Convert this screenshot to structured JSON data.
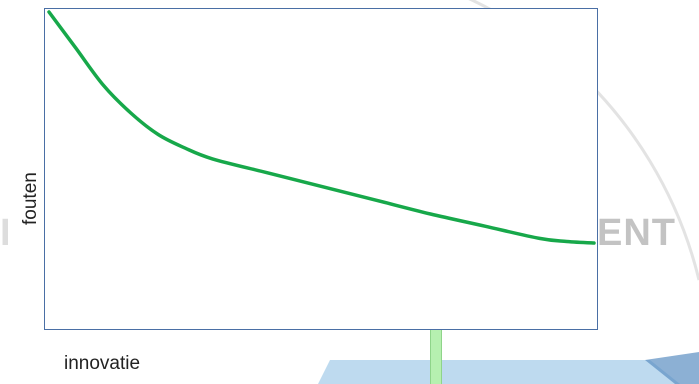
{
  "watermark": {
    "text_right": "ENT"
  },
  "colors": {
    "curve": "#17a84a",
    "plot_border": "#4a6fa5",
    "accent_bar": "#b6f0b0",
    "panel_blue": "#a8cdea"
  },
  "chart_data": {
    "type": "line",
    "title": "",
    "xlabel": "innovatie",
    "ylabel": "fouten",
    "xlim": [
      0,
      1
    ],
    "ylim": [
      0,
      1
    ],
    "grid": false,
    "legend": "none",
    "series": [
      {
        "x": [
          0.0,
          0.05,
          0.1,
          0.15,
          0.2,
          0.25,
          0.3,
          0.4,
          0.5,
          0.6,
          0.7,
          0.8,
          0.9,
          0.95,
          1.0
        ],
        "values": [
          1.0,
          0.88,
          0.76,
          0.67,
          0.6,
          0.555,
          0.52,
          0.475,
          0.43,
          0.385,
          0.34,
          0.3,
          0.26,
          0.25,
          0.245
        ]
      }
    ]
  }
}
